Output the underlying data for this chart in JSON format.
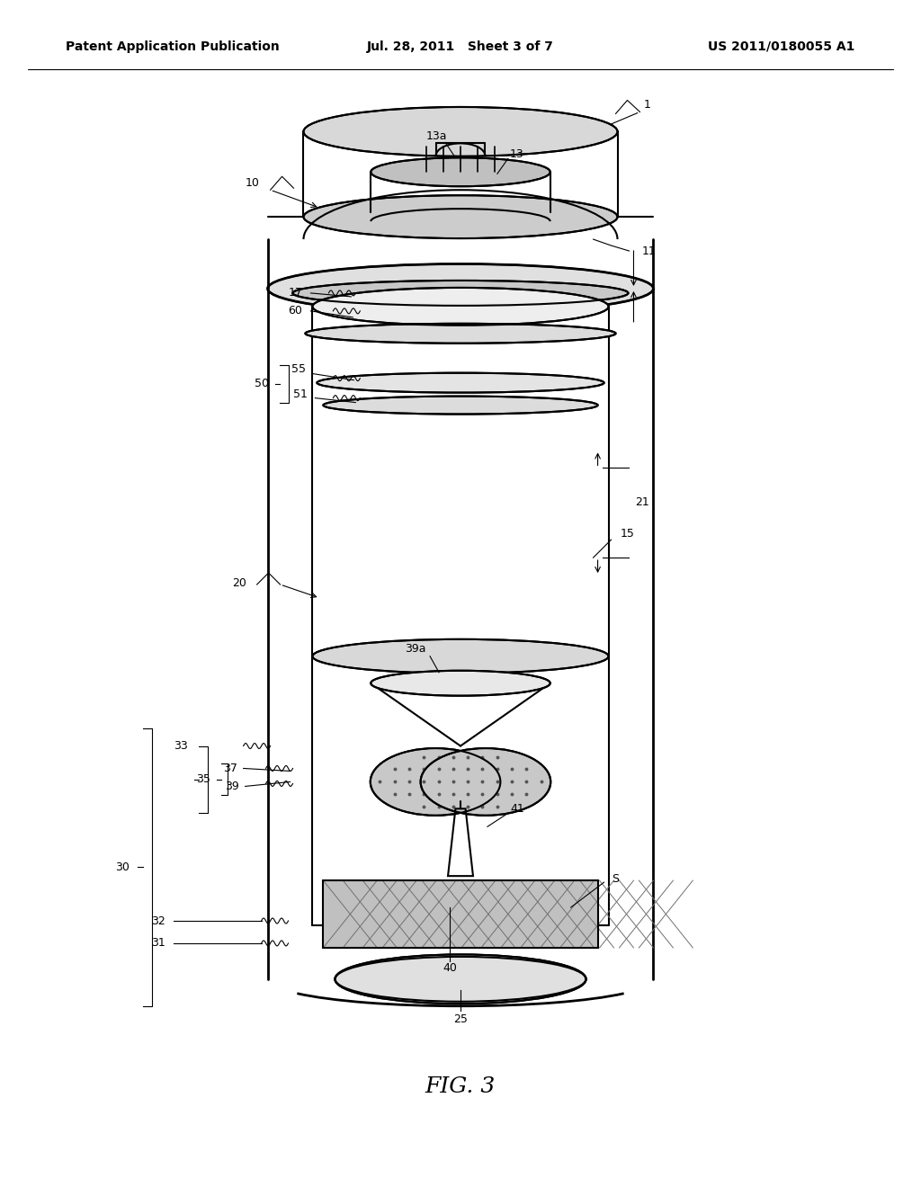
{
  "background_color": "#ffffff",
  "line_color": "#000000",
  "light_gray": "#cccccc",
  "mid_gray": "#aaaaaa",
  "hatch_gray": "#888888",
  "title_left": "Patent Application Publication",
  "title_center": "Jul. 28, 2011   Sheet 3 of 7",
  "title_right": "US 2011/0180055 A1",
  "caption": "FIG. 3",
  "font_size_header": 10,
  "font_size_label": 9,
  "font_size_caption": 18
}
